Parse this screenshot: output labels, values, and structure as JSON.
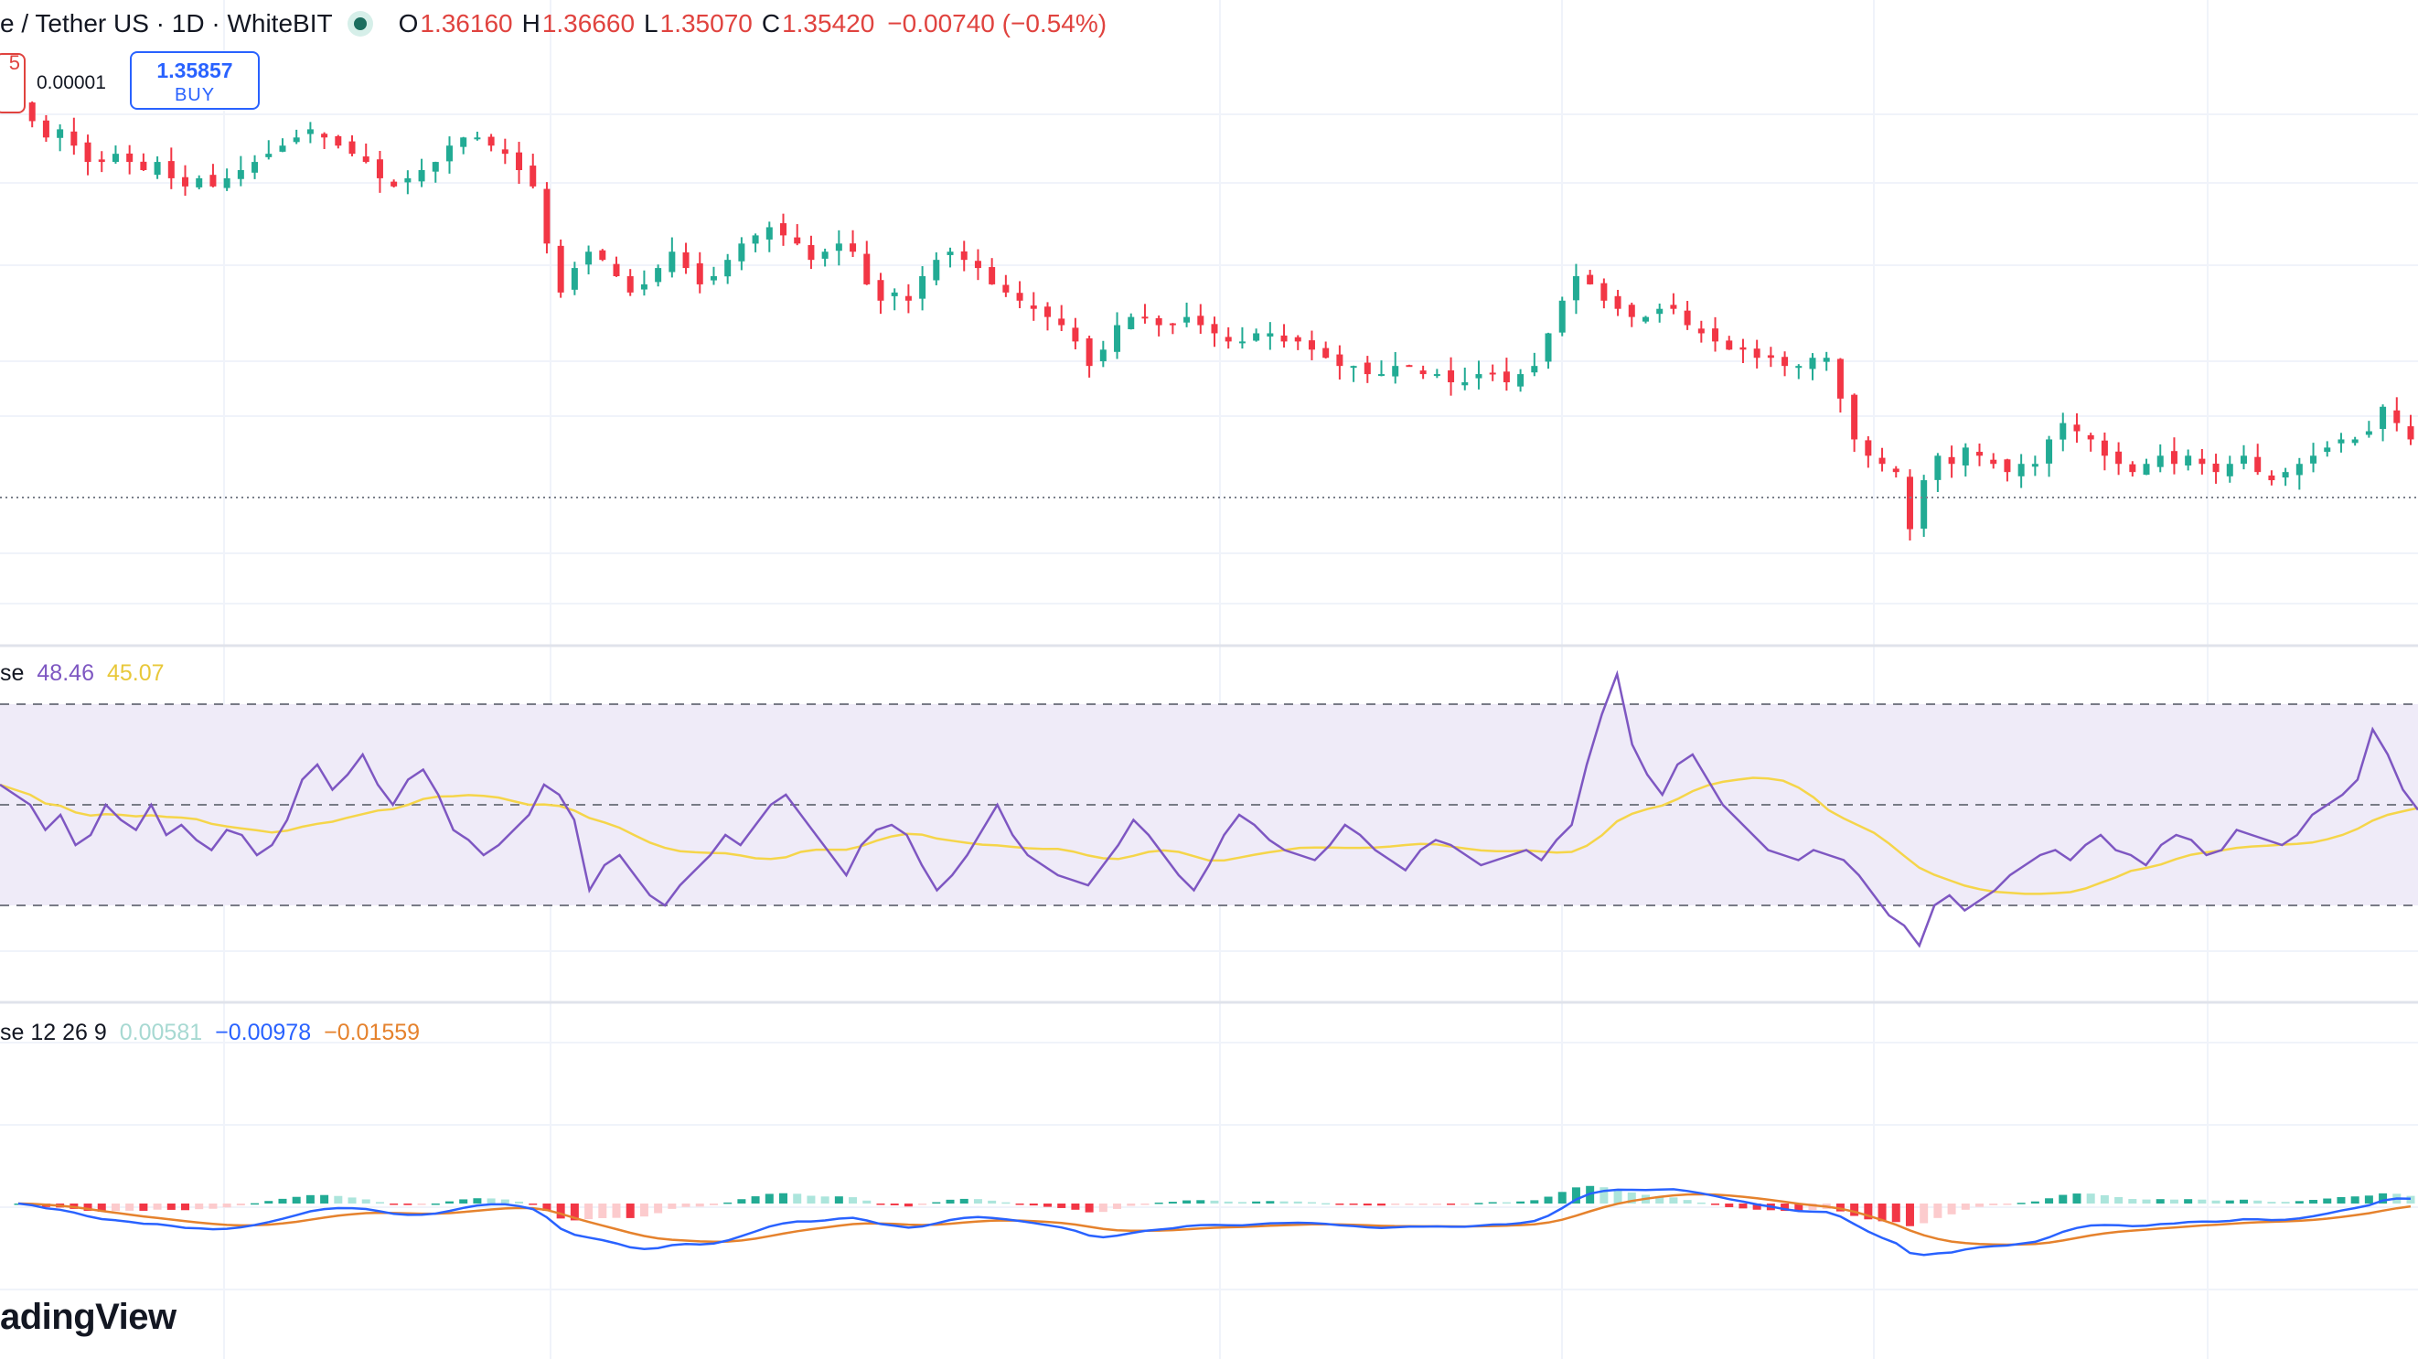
{
  "legend": {
    "title": "e / Tether US · 1D · WhiteBIT",
    "open_label": "O",
    "open": "1.36160",
    "high_label": "H",
    "high": "1.36660",
    "low_label": "L",
    "low": "1.35070",
    "close_label": "C",
    "close": "1.35420",
    "change": "−0.00740 (−0.54%)",
    "status_icon": "live-status-dot-icon"
  },
  "trade": {
    "sell_price_fragment": "5",
    "spread": "0.00001",
    "buy_price": "1.35857",
    "buy_label": "BUY"
  },
  "rsi_legend": {
    "name": "se",
    "value": "48.46",
    "ma": "45.07"
  },
  "macd_legend": {
    "name": "se 12 26 9",
    "hist": "0.00581",
    "macd": "−0.00978",
    "signal": "−0.01559"
  },
  "logo": "adingView",
  "colors": {
    "up": "#22ab94",
    "down": "#f23645",
    "hist_up_strong": "#22ab94",
    "hist_up_weak": "#ace5dc",
    "hist_down_strong": "#f23645",
    "hist_down_weak": "#fccbcd",
    "rsi_line": "#7e57c2",
    "rsi_ma": "#f5d54a",
    "rsi_band": "#efebf8",
    "macd_line": "#2962ff",
    "signal_line": "#e5822d",
    "grid": "#f0f3fa"
  },
  "chart_data": [
    {
      "type": "candlestick",
      "title": "",
      "last_price_line": 1.3542,
      "close_trend": [
        1.395,
        1.393,
        1.391,
        1.392,
        1.39,
        1.388,
        1.388,
        1.389,
        1.388,
        1.387,
        1.388,
        1.386,
        1.385,
        1.386,
        1.385,
        1.386,
        1.387,
        1.388,
        1.389,
        1.39,
        1.391,
        1.392,
        1.391,
        1.39,
        1.389,
        1.388,
        1.386,
        1.385,
        1.386,
        1.387,
        1.388,
        1.39,
        1.391,
        1.391,
        1.39,
        1.389,
        1.387,
        1.385,
        1.378,
        1.372,
        1.375,
        1.377,
        1.376,
        1.374,
        1.372,
        1.373,
        1.375,
        1.377,
        1.375,
        1.373,
        1.374,
        1.376,
        1.378,
        1.379,
        1.38,
        1.379,
        1.378,
        1.376,
        1.377,
        1.378,
        1.377,
        1.373,
        1.371,
        1.372,
        1.371,
        1.374,
        1.376,
        1.377,
        1.376,
        1.375,
        1.373,
        1.372,
        1.371,
        1.37,
        1.369,
        1.368,
        1.366,
        1.363,
        1.365,
        1.368,
        1.369,
        1.369,
        1.368,
        1.368,
        1.369,
        1.368,
        1.367,
        1.366,
        1.366,
        1.367,
        1.367,
        1.366,
        1.366,
        1.365,
        1.364,
        1.363,
        1.363,
        1.362,
        1.362,
        1.363,
        1.363,
        1.362,
        1.362,
        1.361,
        1.361,
        1.362,
        1.362,
        1.361,
        1.362,
        1.363,
        1.367,
        1.371,
        1.374,
        1.373,
        1.371,
        1.37,
        1.369,
        1.369,
        1.37,
        1.37,
        1.368,
        1.367,
        1.366,
        1.365,
        1.365,
        1.364,
        1.364,
        1.363,
        1.363,
        1.364,
        1.364,
        1.359,
        1.354,
        1.352,
        1.351,
        1.35,
        1.343,
        1.349,
        1.352,
        1.351,
        1.353,
        1.352,
        1.351,
        1.35,
        1.351,
        1.351,
        1.354,
        1.356,
        1.355,
        1.354,
        1.352,
        1.351,
        1.35,
        1.351,
        1.352,
        1.351,
        1.352,
        1.351,
        1.35,
        1.351,
        1.352,
        1.35,
        1.349,
        1.35,
        1.351,
        1.352,
        1.353,
        1.354,
        1.354,
        1.355,
        1.358,
        1.356,
        1.354
      ],
      "notes": "Daily candles; price scale labels not visible (cropped)."
    },
    {
      "type": "line",
      "name": "RSI",
      "levels": [
        70,
        50,
        30
      ],
      "last": 48.46,
      "ma_last": 45.07,
      "values": [
        54,
        52,
        50,
        45,
        48,
        42,
        44,
        50,
        47,
        45,
        50,
        44,
        46,
        43,
        41,
        45,
        44,
        40,
        42,
        47,
        55,
        58,
        53,
        56,
        60,
        54,
        50,
        55,
        57,
        52,
        45,
        43,
        40,
        42,
        45,
        48,
        54,
        52,
        47,
        33,
        38,
        40,
        36,
        32,
        30,
        34,
        37,
        40,
        44,
        42,
        46,
        50,
        52,
        48,
        44,
        40,
        36,
        42,
        45,
        46,
        44,
        38,
        33,
        36,
        40,
        45,
        50,
        44,
        40,
        38,
        36,
        35,
        34,
        38,
        42,
        47,
        44,
        40,
        36,
        33,
        38,
        44,
        48,
        46,
        43,
        41,
        40,
        39,
        42,
        46,
        44,
        41,
        39,
        37,
        41,
        43,
        42,
        40,
        38,
        39,
        40,
        41,
        39,
        43,
        46,
        58,
        68,
        76,
        62,
        56,
        52,
        58,
        60,
        55,
        50,
        47,
        44,
        41,
        40,
        39,
        41,
        40,
        39,
        36,
        32,
        28,
        26,
        22,
        30,
        32,
        29,
        31,
        33,
        36,
        38,
        40,
        41,
        39,
        42,
        44,
        41,
        40,
        38,
        42,
        44,
        43,
        40,
        41,
        45,
        44,
        43,
        42,
        44,
        48,
        50,
        52,
        55,
        65,
        60,
        53,
        49
      ]
    },
    {
      "type": "bar+line",
      "name": "MACD",
      "params": "12 26 9",
      "histogram_last": 0.00581,
      "macd_last": -0.00978,
      "signal_last": -0.01559
    }
  ]
}
